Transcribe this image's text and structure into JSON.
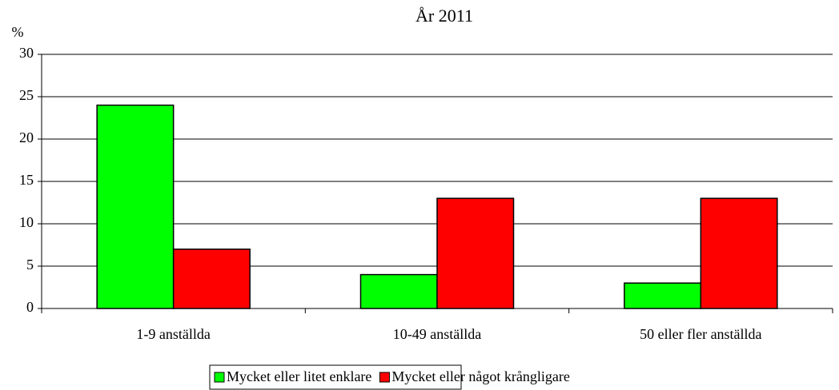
{
  "chart_data": {
    "type": "bar",
    "subtitle": "År 2011",
    "ylabel": "%",
    "categories": [
      "1-9 anställda",
      "10-49 anställda",
      "50 eller fler anställda"
    ],
    "series": [
      {
        "name": "Mycket eller litet enklare",
        "color": "#00ff00",
        "values": [
          24,
          4,
          3
        ]
      },
      {
        "name": "Mycket eller något krångligare",
        "color": "#ff0000",
        "values": [
          7,
          13,
          13
        ]
      }
    ],
    "ylim": [
      0,
      30
    ],
    "yticks": [
      0,
      5,
      10,
      15,
      20,
      25,
      30
    ],
    "grid": true,
    "legend": "bottom"
  }
}
